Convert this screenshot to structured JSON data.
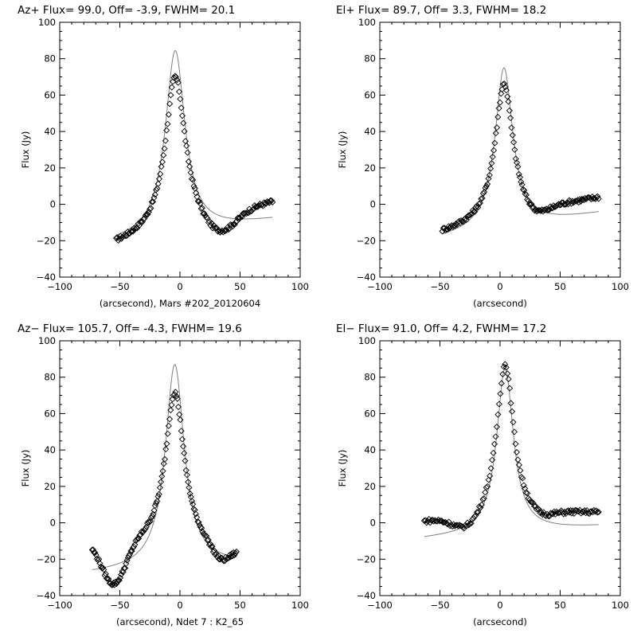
{
  "chart_data": [
    {
      "type": "scatter",
      "title": "Az+ Flux=  99.0, Off=  -3.9, FWHM=   20.1",
      "xlabel": "(arcsecond),  Mars #202_20120604",
      "ylabel": "Flux (Jy)",
      "xlim": [
        -100,
        100
      ],
      "ylim": [
        -40,
        100
      ],
      "xticks": [
        -100,
        -50,
        0,
        50,
        100
      ],
      "yticks": [
        -40,
        -20,
        0,
        20,
        40,
        60,
        80,
        100
      ],
      "peak": 84.5,
      "center": -3.9,
      "fwhm": 20.1,
      "data_range": [
        -53,
        77
      ],
      "left_anchor": [
        -53,
        -19.5
      ],
      "right_anchor": [
        77,
        1.5
      ],
      "dip": {
        "x": 33,
        "depth": 12.5,
        "width": 19
      },
      "fit_baseline": [
        [
          -53,
          -21
        ],
        [
          77,
          -8.5
        ]
      ],
      "series": [
        {
          "name": "data",
          "style": "diamond-markers"
        },
        {
          "name": "fit",
          "style": "line",
          "color": "#808080"
        }
      ]
    },
    {
      "type": "scatter",
      "title": "El+ Flux=  89.7, Off=   3.3, FWHM=   18.2",
      "xlabel": "(arcsecond)",
      "ylabel": "Flux (Jy)",
      "xlim": [
        -100,
        100
      ],
      "ylim": [
        -40,
        100
      ],
      "xticks": [
        -100,
        -50,
        0,
        50,
        100
      ],
      "yticks": [
        -40,
        -20,
        0,
        20,
        40,
        60,
        80,
        100
      ],
      "peak": 75,
      "center": 3.3,
      "fwhm": 18.2,
      "data_range": [
        -48,
        82
      ],
      "left_anchor": [
        -48,
        -14
      ],
      "right_anchor": [
        82,
        4
      ],
      "dip": {
        "x": 30,
        "depth": 6,
        "width": 15
      },
      "fit_baseline": [
        [
          -48,
          -19
        ],
        [
          82,
          -5
        ]
      ],
      "series": [
        {
          "name": "data",
          "style": "diamond-markers"
        },
        {
          "name": "fit",
          "style": "line",
          "color": "#808080"
        }
      ]
    },
    {
      "type": "scatter",
      "title": "Az− Flux= 105.7, Off=  -4.3, FWHM=   19.6",
      "xlabel": "(arcsecond),  Ndet 7 : K2_65",
      "ylabel": "Flux (Jy)",
      "xlim": [
        -100,
        100
      ],
      "ylim": [
        -40,
        100
      ],
      "xticks": [
        -100,
        -50,
        0,
        50,
        100
      ],
      "yticks": [
        -40,
        -20,
        0,
        20,
        40,
        60,
        80,
        100
      ],
      "peak": 87,
      "center": -4.3,
      "fwhm": 19.6,
      "data_range": [
        -73,
        47
      ],
      "left_anchor": [
        -73,
        -10
      ],
      "right_anchor": [
        47,
        -15
      ],
      "dip": {
        "x": -55,
        "depth": 24,
        "width": 14
      },
      "dip2": {
        "x": 34,
        "depth": 8,
        "width": 10
      },
      "fit_baseline": [
        [
          -73,
          -28
        ],
        [
          47,
          -22.5
        ]
      ],
      "series": [
        {
          "name": "data",
          "style": "diamond-markers"
        },
        {
          "name": "fit",
          "style": "line",
          "color": "#808080"
        }
      ]
    },
    {
      "type": "scatter",
      "title": "El− Flux=  91.0, Off=   4.2, FWHM=   17.2",
      "xlabel": "(arcsecond)",
      "ylabel": "Flux (Jy)",
      "xlim": [
        -100,
        100
      ],
      "ylim": [
        -40,
        100
      ],
      "xticks": [
        -100,
        -50,
        0,
        50,
        100
      ],
      "yticks": [
        -40,
        -20,
        0,
        20,
        40,
        60,
        80,
        100
      ],
      "peak": 85,
      "center": 4.2,
      "fwhm": 17.2,
      "data_range": [
        -63,
        82
      ],
      "left_anchor": [
        -63,
        1
      ],
      "right_anchor": [
        82,
        6
      ],
      "dip": {
        "x": -28,
        "depth": 8,
        "width": 16
      },
      "dip2": {
        "x": 34,
        "depth": 4,
        "width": 14
      },
      "fit_baseline": [
        [
          -63,
          -9
        ],
        [
          82,
          -2
        ]
      ],
      "series": [
        {
          "name": "data",
          "style": "diamond-markers"
        },
        {
          "name": "fit",
          "style": "line",
          "color": "#808080"
        }
      ]
    }
  ]
}
